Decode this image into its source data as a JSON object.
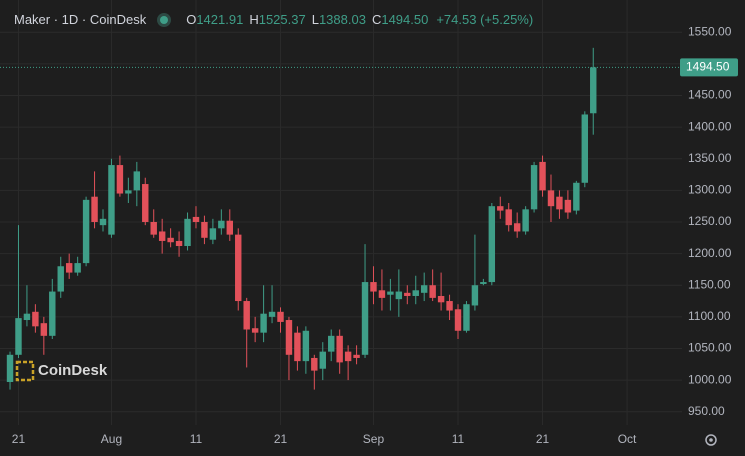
{
  "chart_data": {
    "type": "candlestick",
    "title": "Maker · 1D · CoinDesk",
    "info": [
      {
        "key": "O",
        "text": "1421.91"
      },
      {
        "key": "H",
        "text": "1525.37"
      },
      {
        "key": "L",
        "text": "1388.03"
      },
      {
        "key": "C",
        "text": "1494.50"
      }
    ],
    "change": "+74.53 (+5.25%)",
    "watermark": "CoinDesk",
    "up_color": "#3f9e88",
    "down_color": "#e2515a",
    "grid": true,
    "categories": [
      null,
      "21",
      null,
      null,
      null,
      null,
      null,
      null,
      null,
      null,
      null,
      null,
      "Aug",
      null,
      null,
      null,
      null,
      null,
      null,
      null,
      null,
      null,
      "11",
      null,
      null,
      null,
      null,
      null,
      null,
      null,
      null,
      null,
      "21",
      null,
      null,
      null,
      null,
      null,
      null,
      null,
      null,
      null,
      null,
      "Sep",
      null,
      null,
      null,
      null,
      null,
      null,
      null,
      null,
      null,
      "11",
      null,
      null,
      null,
      null,
      null,
      null,
      null,
      null,
      null,
      "21",
      null,
      null,
      null,
      null,
      null,
      null,
      null,
      null,
      null,
      "Oct",
      null,
      null,
      null,
      null,
      null,
      null
    ],
    "open": [
      997,
      1040,
      1095,
      1108,
      1090,
      1070,
      1140,
      1185,
      1170,
      1185,
      1290,
      1245,
      1230,
      1340,
      1295,
      1300,
      1310,
      1250,
      1235,
      1225,
      1220,
      1212,
      1258,
      1250,
      1222,
      1240,
      1252,
      1230,
      1125,
      1082,
      1075,
      1100,
      1108,
      1095,
      1075,
      1030,
      1035,
      1018,
      1045,
      1070,
      1045,
      1040,
      1040,
      1155,
      1142,
      1135,
      1128,
      1138,
      1133,
      1138,
      1150,
      1133,
      1125,
      1112,
      1078,
      1118,
      1152,
      1155,
      1275,
      1270,
      1248,
      1235,
      1270,
      1345,
      1300,
      1290,
      1285,
      1268,
      1312,
      1421.91,
      null,
      null,
      null,
      null,
      null,
      null,
      null,
      null,
      null,
      null
    ],
    "high": [
      1045,
      1245,
      1150,
      1120,
      1100,
      1160,
      1195,
      1200,
      1195,
      1290,
      1330,
      1270,
      1350,
      1355,
      1320,
      1345,
      1320,
      1270,
      1255,
      1240,
      1235,
      1265,
      1275,
      1260,
      1255,
      1270,
      1270,
      1240,
      1130,
      1100,
      1150,
      1150,
      1115,
      1100,
      1085,
      1085,
      1040,
      1060,
      1080,
      1080,
      1055,
      1055,
      1215,
      1180,
      1175,
      1160,
      1175,
      1150,
      1165,
      1170,
      1175,
      1170,
      1135,
      1120,
      1125,
      1230,
      1160,
      1280,
      1290,
      1280,
      1265,
      1275,
      1345,
      1355,
      1325,
      1300,
      1300,
      1315,
      1425,
      1525.37,
      null,
      null,
      null,
      null,
      null,
      null,
      null,
      null,
      null,
      null
    ],
    "low": [
      985,
      1035,
      1085,
      1075,
      1040,
      1065,
      1130,
      1160,
      1165,
      1180,
      1240,
      1235,
      1225,
      1290,
      1280,
      1275,
      1245,
      1225,
      1200,
      1210,
      1195,
      1205,
      1240,
      1215,
      1215,
      1230,
      1220,
      1110,
      1020,
      1060,
      1060,
      1090,
      1075,
      1000,
      1015,
      1010,
      985,
      1000,
      1030,
      1010,
      1000,
      1025,
      1035,
      1120,
      1110,
      1110,
      1100,
      1120,
      1120,
      1125,
      1125,
      1110,
      1095,
      1065,
      1075,
      1110,
      1150,
      1150,
      1255,
      1235,
      1225,
      1230,
      1265,
      1290,
      1250,
      1255,
      1255,
      1262,
      1305,
      1388.03,
      null,
      null,
      null,
      null,
      null,
      null,
      null,
      null,
      null,
      null
    ],
    "close": [
      1040,
      1098,
      1105,
      1085,
      1070,
      1140,
      1180,
      1170,
      1185,
      1285,
      1250,
      1255,
      1340,
      1295,
      1300,
      1330,
      1250,
      1230,
      1220,
      1218,
      1212,
      1255,
      1250,
      1225,
      1240,
      1252,
      1230,
      1125,
      1080,
      1075,
      1105,
      1108,
      1092,
      1040,
      1030,
      1078,
      1015,
      1045,
      1070,
      1028,
      1030,
      1035,
      1155,
      1140,
      1130,
      1140,
      1140,
      1133,
      1142,
      1150,
      1130,
      1123,
      1110,
      1078,
      1120,
      1150,
      1155,
      1275,
      1268,
      1245,
      1235,
      1270,
      1340,
      1300,
      1275,
      1270,
      1265,
      1312,
      1420,
      1494.5,
      null,
      null,
      null,
      null,
      null,
      null,
      null,
      null,
      null,
      null
    ],
    "ylim": [
      929,
      1601
    ],
    "yticks": [
      {
        "value": 950,
        "label": "950.00"
      },
      {
        "value": 1000,
        "label": "1000.00"
      },
      {
        "value": 1050,
        "label": "1050.00"
      },
      {
        "value": 1100,
        "label": "1100.00"
      },
      {
        "value": 1150,
        "label": "1150.00"
      },
      {
        "value": 1200,
        "label": "1200.00"
      },
      {
        "value": 1250,
        "label": "1250.00"
      },
      {
        "value": 1300,
        "label": "1300.00"
      },
      {
        "value": 1350,
        "label": "1350.00"
      },
      {
        "value": 1400,
        "label": "1400.00"
      },
      {
        "value": 1450,
        "label": "1450.00"
      },
      {
        "value": 1500,
        "label": "1500.00"
      },
      {
        "value": 1550,
        "label": "1550.00"
      }
    ],
    "last_price": {
      "value": 1494.5,
      "label": "1494.50"
    }
  }
}
